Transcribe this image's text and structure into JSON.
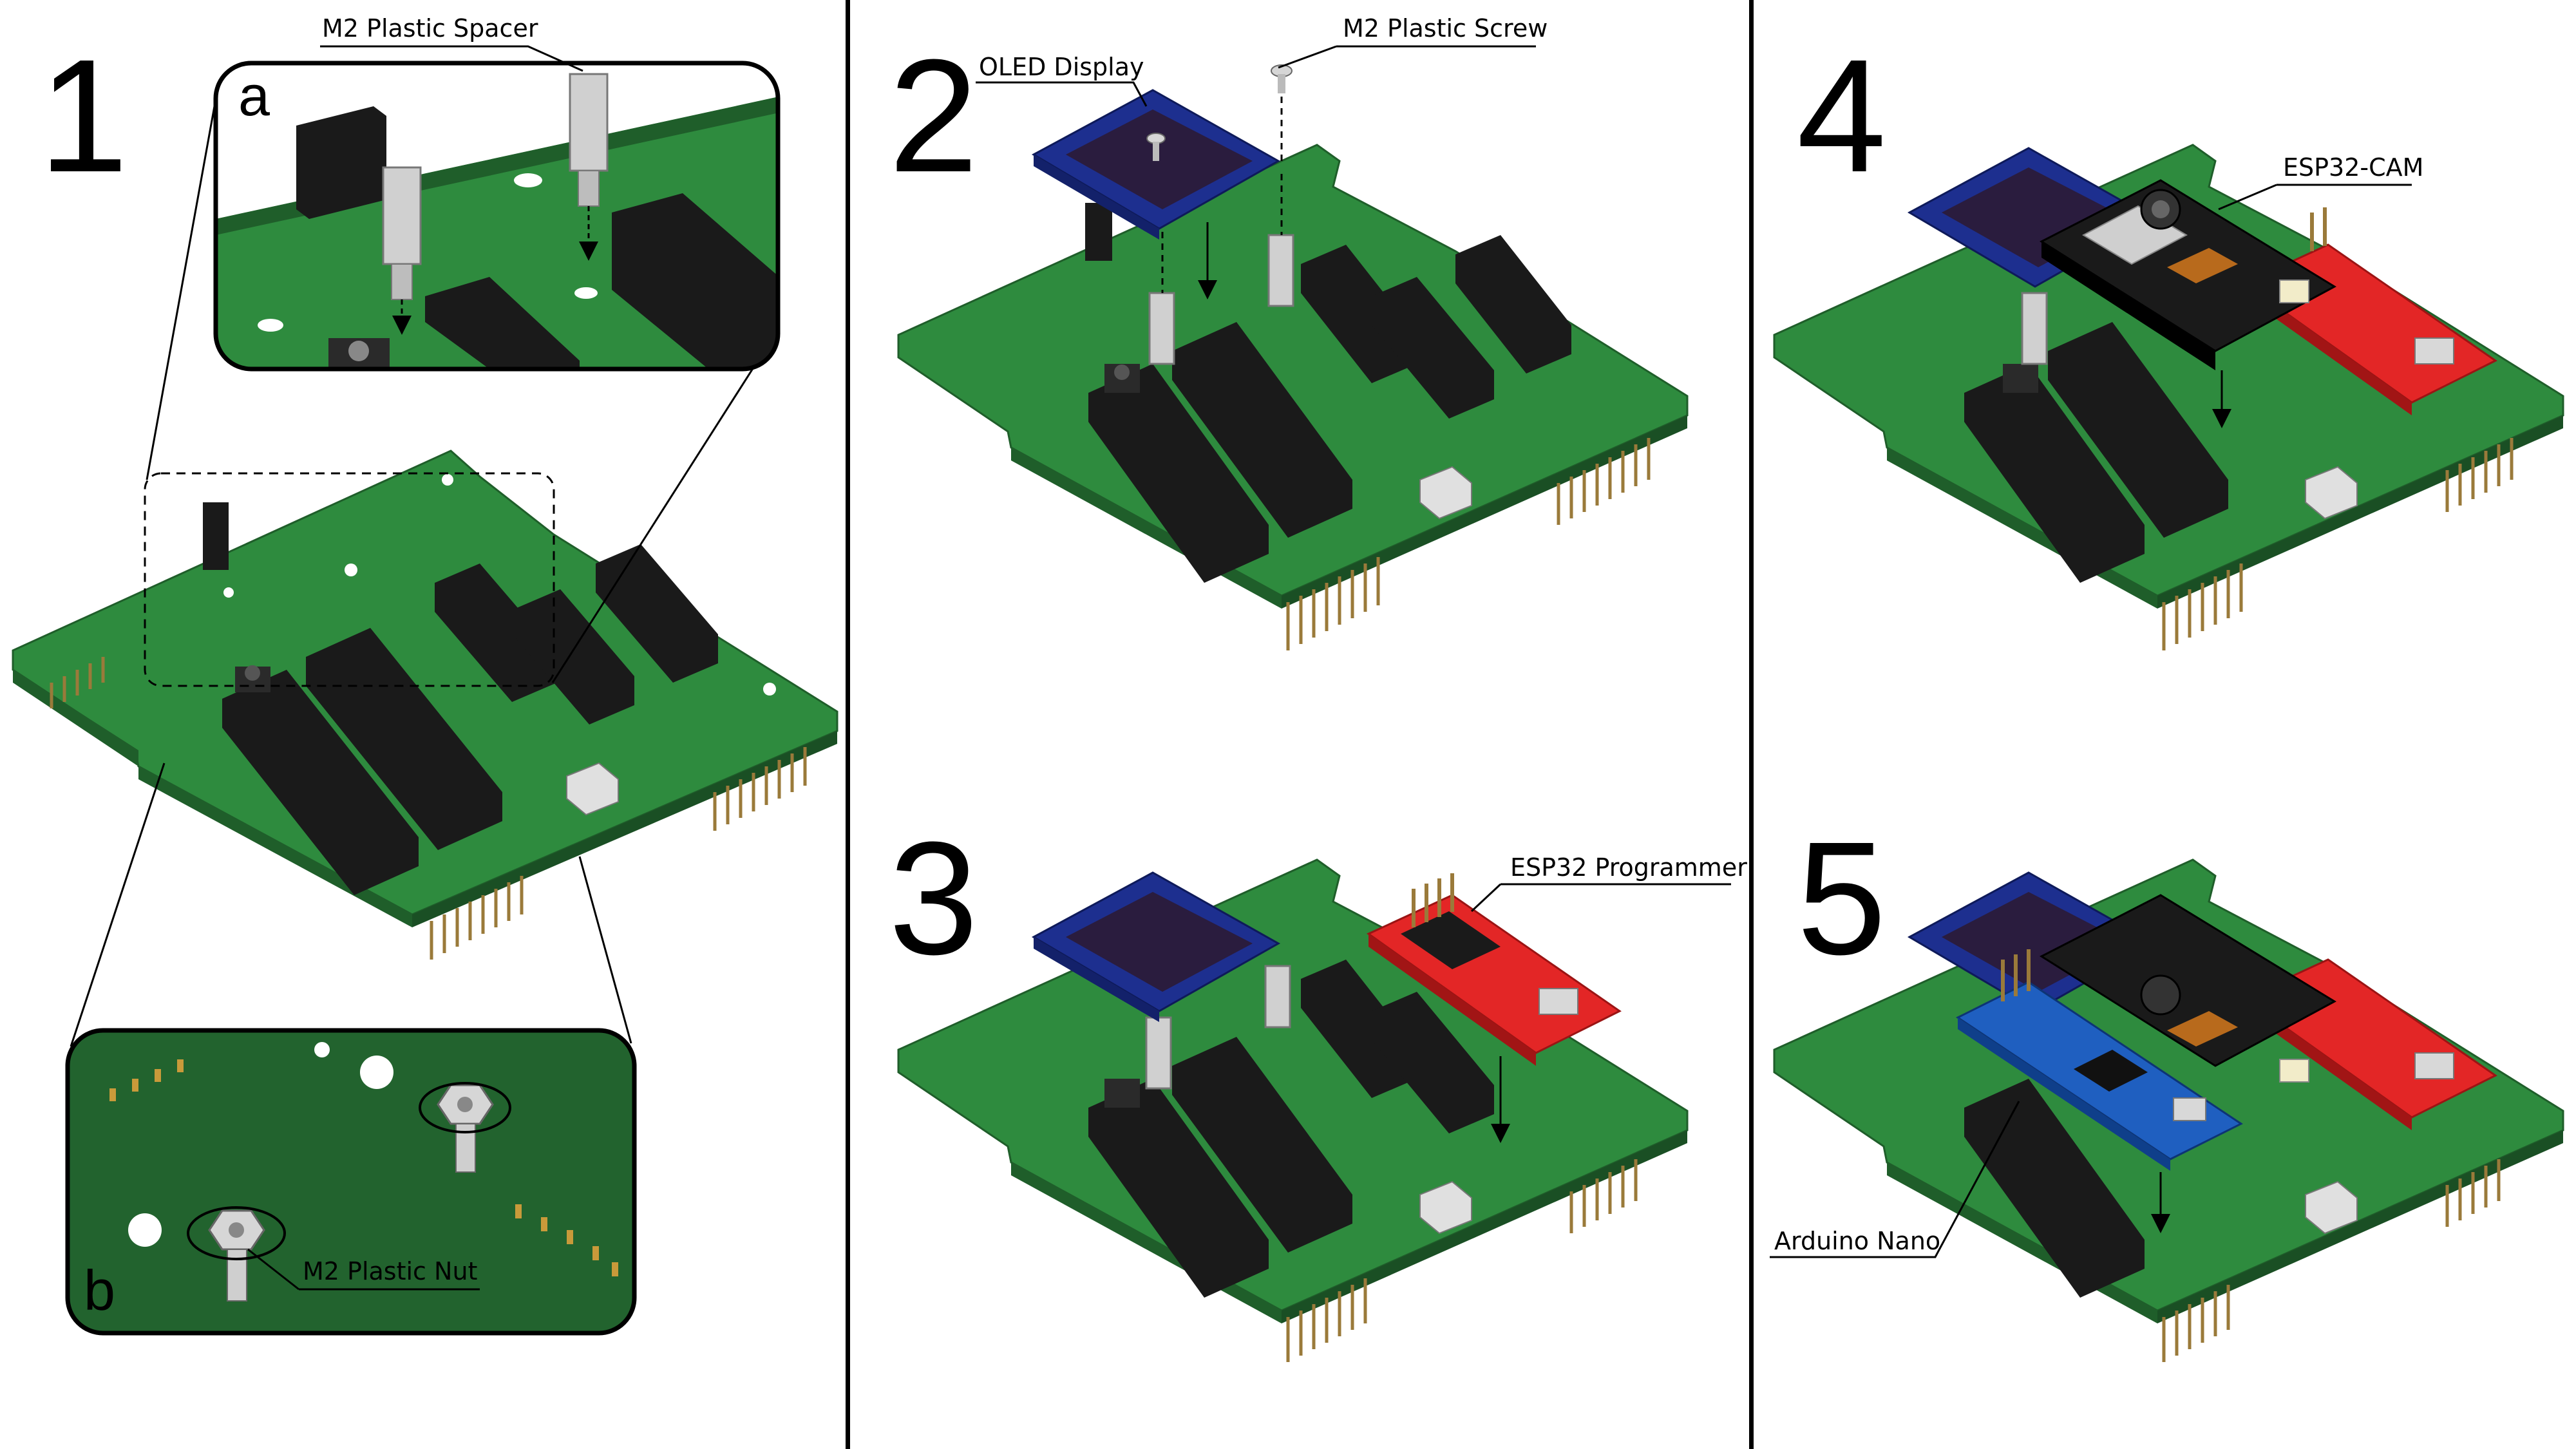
{
  "steps": {
    "s1": "1",
    "s2": "2",
    "s3": "3",
    "s4": "4",
    "s5": "5"
  },
  "insets": {
    "a": "a",
    "b": "b"
  },
  "labels": {
    "spacer": "M2 Plastic Spacer",
    "nut": "M2 Plastic Nut",
    "oled": "OLED Display",
    "screw": "M2 Plastic Screw",
    "programmer": "ESP32 Programmer",
    "esp32cam": "ESP32-CAM",
    "nano": "Arduino Nano"
  },
  "colors": {
    "pcb": "#2e8b3e",
    "pcb_dark": "#1f5e2a",
    "header": "#1a1a1a",
    "oled_board": "#1d2f8f",
    "oled_screen": "#2a1c3e",
    "programmer": "#e32626",
    "nano": "#1f5fc0",
    "metal": "#c9c9c9"
  }
}
